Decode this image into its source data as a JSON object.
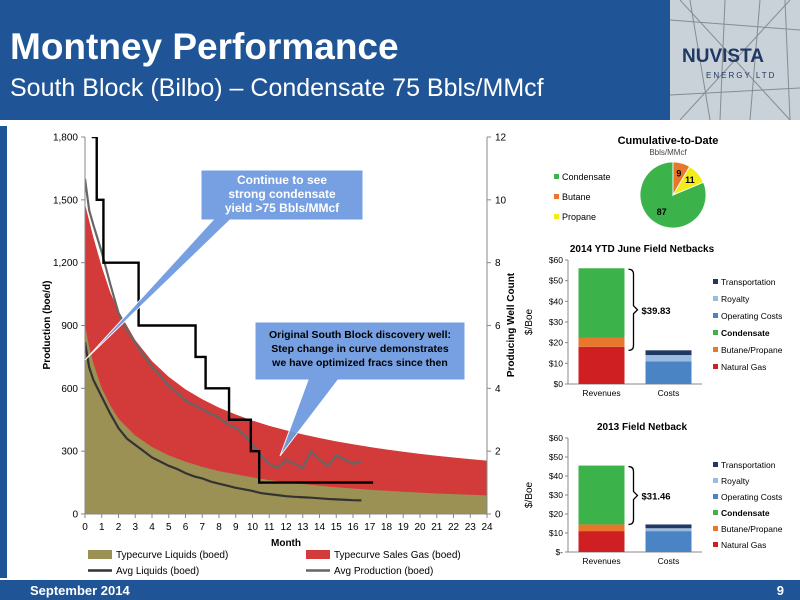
{
  "header": {
    "title": "Montney Performance",
    "subtitle": "South Block (Bilbo) – Condensate 75 Bbls/MMcf",
    "logo_top": "NUVISTA",
    "logo_bottom": "ENERGY LTD"
  },
  "footer": {
    "date": "September 2014",
    "page": "9"
  },
  "colors": {
    "header_bg": "#1f5496",
    "liquids": "#9b9155",
    "sales_gas": "#d33a3a",
    "condensate": "#3cb34a",
    "butane": "#e8762b",
    "propane": "#f3ec19",
    "natural_gas": "#cf1f23",
    "operating_costs": "#4a84c4",
    "royalty": "#9bbce0",
    "transportation": "#1f3864",
    "callout": "#6f9be0"
  },
  "chart_data": [
    {
      "type": "area",
      "xlabel": "Month",
      "ylabel": "Production (boe/d)",
      "y2label": "Producing Well Count",
      "xlim": [
        0,
        24
      ],
      "ylim": [
        0,
        1800
      ],
      "y2lim": [
        0,
        12
      ],
      "x_ticks": [
        "0",
        "1",
        "2",
        "3",
        "4",
        "5",
        "6",
        "7",
        "8",
        "9",
        "10",
        "11",
        "12",
        "13",
        "14",
        "15",
        "16",
        "17",
        "18",
        "19",
        "20",
        "21",
        "22",
        "23",
        "24"
      ],
      "y_ticks": [
        "0",
        "300",
        "600",
        "900",
        "1,200",
        "1,500",
        "1,800"
      ],
      "y2_ticks": [
        "0",
        "2",
        "4",
        "6",
        "8",
        "10",
        "12"
      ],
      "callouts": [
        {
          "text": [
            "Continue to see",
            "strong condensate",
            "yield >75 Bbls/MMcf"
          ]
        },
        {
          "text": [
            "Original South Block discovery well:",
            "Step change in curve demonstrates",
            "we have optimized fracs since then"
          ]
        }
      ],
      "series": [
        {
          "name": "Typecurve Liquids (boed)",
          "kind": "area",
          "x": [
            0,
            0.25,
            0.5,
            1,
            1.5,
            2,
            3,
            4,
            5,
            6,
            7,
            8,
            9,
            10,
            11,
            12,
            13,
            14,
            15,
            16,
            17,
            18,
            19,
            20,
            21,
            22,
            23,
            24
          ],
          "y": [
            900,
            800,
            720,
            600,
            520,
            455,
            375,
            320,
            280,
            250,
            225,
            205,
            190,
            175,
            162,
            152,
            143,
            135,
            128,
            122,
            116,
            111,
            106,
            102,
            98,
            95,
            92,
            89
          ]
        },
        {
          "name": "Typecurve Sales Gas (boed)",
          "kind": "area",
          "x": [
            0,
            0.25,
            0.5,
            1,
            1.5,
            2,
            3,
            4,
            5,
            6,
            7,
            8,
            9,
            10,
            11,
            12,
            13,
            14,
            15,
            16,
            17,
            18,
            19,
            20,
            21,
            22,
            23,
            24
          ],
          "y": [
            1480,
            1400,
            1320,
            1180,
            1060,
            970,
            830,
            730,
            655,
            595,
            548,
            508,
            475,
            446,
            421,
            400,
            380,
            363,
            347,
            333,
            320,
            308,
            297,
            287,
            278,
            270,
            262,
            255
          ]
        },
        {
          "name": "Avg Liquids (boed)",
          "kind": "line",
          "x": [
            0,
            0.25,
            0.5,
            1,
            1.5,
            2,
            2.5,
            3,
            3.5,
            4,
            4.5,
            5,
            5.5,
            6,
            6.5,
            7,
            7.5,
            8,
            8.5,
            9,
            9.5,
            10,
            10.5,
            11,
            11.5,
            12,
            12.5,
            13,
            13.5,
            14,
            14.5,
            15,
            15.5,
            16,
            16.5
          ],
          "y": [
            820,
            700,
            640,
            560,
            480,
            410,
            360,
            330,
            300,
            270,
            250,
            230,
            215,
            195,
            180,
            170,
            155,
            145,
            135,
            125,
            118,
            110,
            100,
            95,
            90,
            85,
            82,
            80,
            78,
            75,
            72,
            70,
            68,
            66,
            65
          ]
        },
        {
          "name": "Avg Production (boed)",
          "kind": "line",
          "x": [
            0,
            0.25,
            0.5,
            1,
            1.5,
            2,
            2.5,
            3,
            3.5,
            4,
            4.5,
            5,
            5.5,
            6,
            6.5,
            7,
            7.5,
            8,
            8.5,
            9,
            9.5,
            10,
            10.5,
            11,
            11.5,
            12,
            12.5,
            13,
            13.5,
            14,
            14.5,
            15,
            15.5,
            16,
            16.5
          ],
          "y": [
            1600,
            1450,
            1380,
            1250,
            1100,
            960,
            880,
            820,
            760,
            700,
            660,
            610,
            580,
            540,
            520,
            500,
            480,
            460,
            430,
            410,
            380,
            330,
            280,
            240,
            220,
            260,
            240,
            220,
            300,
            260,
            230,
            280,
            260,
            240,
            250
          ]
        },
        {
          "name": "Producing Well Count",
          "kind": "step",
          "axis": "y2",
          "x": [
            0.4,
            0.7,
            1.1,
            3.2,
            6.6,
            7.2,
            8.6,
            9.9,
            10.4,
            10.9,
            17.2
          ],
          "y": [
            12,
            10,
            8,
            6,
            5,
            4,
            3,
            2,
            1,
            1,
            1
          ]
        }
      ],
      "legend": [
        "Typecurve Liquids (boed)",
        "Typecurve Sales Gas (boed)",
        "Avg Liquids (boed)",
        "Avg Production (boed)"
      ]
    },
    {
      "type": "pie",
      "title": "Cumulative-to-Date",
      "subtitle": "Bbls/MMcf",
      "categories": [
        "Condensate",
        "Butane",
        "Propane"
      ],
      "values": [
        87,
        9,
        11
      ]
    },
    {
      "type": "bar",
      "stacked": true,
      "title": "2014 YTD June Field Netbacks",
      "ylabel": "$/Boe",
      "ylim": [
        0,
        60
      ],
      "y_ticks": [
        "$0",
        "$10",
        "$20",
        "$30",
        "$40",
        "$50",
        "$60"
      ],
      "categories": [
        "Revenues",
        "Costs"
      ],
      "series": [
        {
          "name": "Natural Gas",
          "values": [
            18,
            0
          ]
        },
        {
          "name": "Butane/Propane",
          "values": [
            4.5,
            0
          ]
        },
        {
          "name": "Condensate",
          "values": [
            33.5,
            0
          ]
        },
        {
          "name": "Operating Costs",
          "values": [
            0,
            11
          ]
        },
        {
          "name": "Royalty",
          "values": [
            0,
            3
          ]
        },
        {
          "name": "Transportation",
          "values": [
            0,
            2.3
          ]
        }
      ],
      "legend": [
        "Transportation",
        "Royalty",
        "Operating Costs",
        "Condensate",
        "Butane/Propane",
        "Natural Gas"
      ],
      "netback_label": "$39.83"
    },
    {
      "type": "bar",
      "stacked": true,
      "title": "2013 Field Netback",
      "ylabel": "$/Boe",
      "ylim": [
        0,
        60
      ],
      "y_ticks": [
        "$-",
        "$10",
        "$20",
        "$30",
        "$40",
        "$50",
        "$60"
      ],
      "categories": [
        "Revenues",
        "Costs"
      ],
      "series": [
        {
          "name": "Natural Gas",
          "values": [
            11,
            0
          ]
        },
        {
          "name": "Butane/Propane",
          "values": [
            3.5,
            0
          ]
        },
        {
          "name": "Condensate",
          "values": [
            31,
            0
          ]
        },
        {
          "name": "Operating Costs",
          "values": [
            0,
            11
          ]
        },
        {
          "name": "Royalty",
          "values": [
            0,
            1.5
          ]
        },
        {
          "name": "Transportation",
          "values": [
            0,
            2
          ]
        }
      ],
      "legend": [
        "Transportation",
        "Royalty",
        "Operating Costs",
        "Condensate",
        "Butane/Propane",
        "Natural Gas"
      ],
      "netback_label": "$31.46"
    }
  ]
}
